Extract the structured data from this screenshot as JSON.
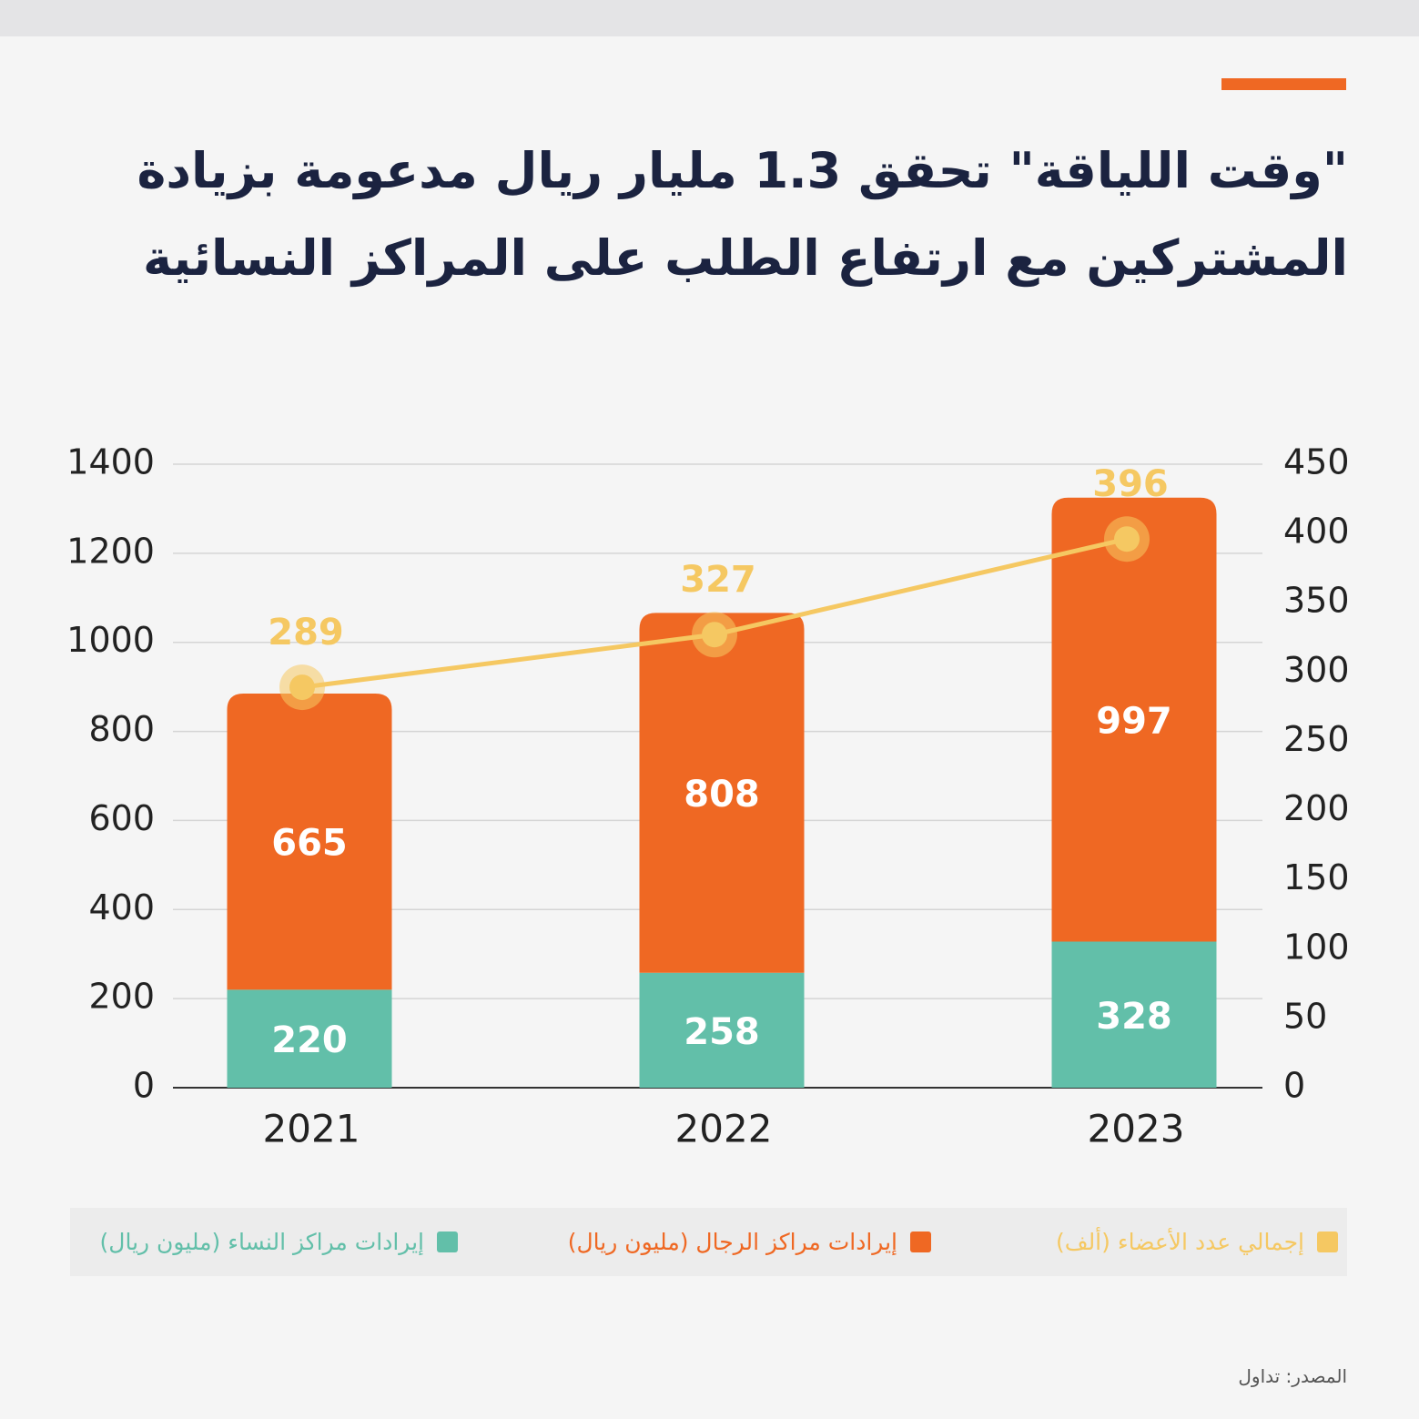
{
  "chart_data": {
    "type": "bar",
    "stacked": true,
    "title": "\"وقت اللياقة\" تحقق 1.3 مليار ريال مدعومة بزيادة المشتركين مع ارتفاع الطلب على المراكز النسائية",
    "categories": [
      "2021",
      "2022",
      "2023"
    ],
    "series": [
      {
        "name": "إيرادات مراكز النساء (مليون ريال)",
        "color": "#62bfa9",
        "values": [
          220,
          258,
          328
        ]
      },
      {
        "name": "إيرادات مراكز الرجال (مليون ريال)",
        "color": "#ef6823",
        "values": [
          665,
          808,
          997
        ]
      },
      {
        "name": "إجمالي عدد الأعضاء (ألف)",
        "color": "#f5c862",
        "type": "line",
        "axis": "y2",
        "values": [
          289,
          327,
          396
        ]
      }
    ],
    "ylim": [
      0,
      1400
    ],
    "yticks": [
      0,
      200,
      400,
      600,
      800,
      1000,
      1200,
      1400
    ],
    "y2lim": [
      0,
      450
    ],
    "y2ticks": [
      0,
      50,
      100,
      150,
      200,
      250,
      300,
      350,
      400,
      450
    ],
    "grid": true,
    "source": "المصدر: تداول"
  }
}
